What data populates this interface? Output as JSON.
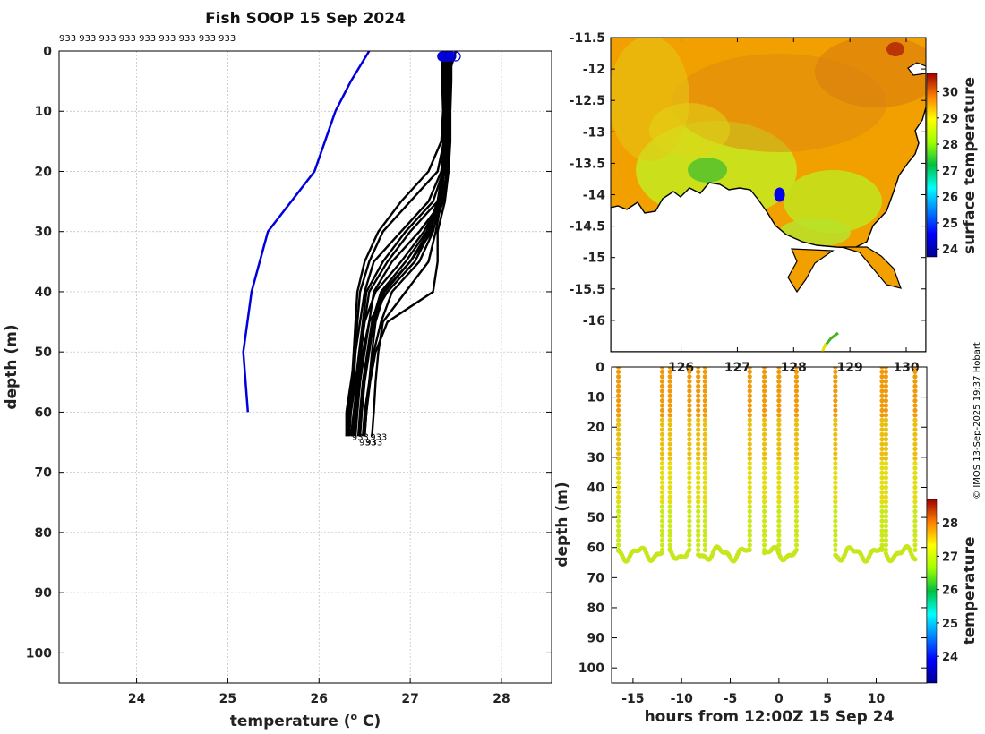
{
  "chart_data": [
    {
      "type": "line",
      "title": "Fish SOOP 15 Sep 2024",
      "xlabel": "temperature (o C)",
      "ylabel": "depth (m)",
      "xlim": [
        23.15,
        28.55
      ],
      "ylim": [
        105,
        0
      ],
      "xticks": [
        "24",
        "25",
        "26",
        "27",
        "28"
      ],
      "yticks": [
        "0",
        "10",
        "20",
        "30",
        "40",
        "50",
        "60",
        "70",
        "80",
        "90",
        "100"
      ],
      "top_labels": [
        "933",
        "933",
        "933",
        "933",
        "933",
        "933",
        "933",
        "933",
        "933"
      ],
      "end_label": "933",
      "climatology": {
        "name": "climatology",
        "color": "#0000dd",
        "temp": [
          26.55,
          26.35,
          26.18,
          25.95,
          25.44,
          25.26,
          25.17,
          25.22
        ],
        "depth": [
          0,
          5,
          10,
          20,
          30,
          40,
          50,
          60
        ]
      },
      "profiles_depth": [
        0,
        5,
        10,
        15,
        20,
        25,
        30,
        35,
        40,
        45,
        50,
        55,
        60,
        64
      ],
      "profiles_temp": [
        [
          27.36,
          27.38,
          27.38,
          27.37,
          27.34,
          27.2,
          26.9,
          26.6,
          26.5,
          26.45,
          26.4,
          26.35,
          26.3,
          26.3
        ],
        [
          27.4,
          27.41,
          27.4,
          27.39,
          27.38,
          27.3,
          27.0,
          26.75,
          26.55,
          26.5,
          26.45,
          26.42,
          26.38,
          26.35
        ],
        [
          27.38,
          27.39,
          27.39,
          27.38,
          27.36,
          27.25,
          26.95,
          26.7,
          26.52,
          26.48,
          26.44,
          26.4,
          26.35,
          26.33
        ],
        [
          27.42,
          27.42,
          27.41,
          27.4,
          27.4,
          27.35,
          27.1,
          26.8,
          26.6,
          26.55,
          26.5,
          26.45,
          26.42,
          26.4
        ],
        [
          27.37,
          27.37,
          27.37,
          27.36,
          27.35,
          27.3,
          27.2,
          27.0,
          26.7,
          26.6,
          26.55,
          26.5,
          26.47,
          26.45
        ],
        [
          27.45,
          27.45,
          27.44,
          27.44,
          27.42,
          27.38,
          27.3,
          27.3,
          27.25,
          26.75,
          26.62,
          26.56,
          26.52,
          26.5
        ],
        [
          27.36,
          27.37,
          27.37,
          27.37,
          27.3,
          27.0,
          26.7,
          26.55,
          26.45,
          26.42,
          26.4,
          26.38,
          26.34,
          26.32
        ],
        [
          27.39,
          27.39,
          27.38,
          27.38,
          27.37,
          27.32,
          27.15,
          26.9,
          26.62,
          26.5,
          26.46,
          26.43,
          26.4,
          26.36
        ],
        [
          27.5,
          27.4,
          27.38,
          27.37,
          27.36,
          27.33,
          27.25,
          27.1,
          26.8,
          26.68,
          26.6,
          26.55,
          26.52,
          26.5
        ],
        [
          27.35,
          27.35,
          27.36,
          27.34,
          27.2,
          26.9,
          26.65,
          26.5,
          26.42,
          26.4,
          26.38,
          26.36,
          26.32,
          26.3
        ],
        [
          27.41,
          27.41,
          27.41,
          27.41,
          27.38,
          27.3,
          27.18,
          26.95,
          26.68,
          26.58,
          26.53,
          26.48,
          26.45,
          26.43
        ],
        [
          27.38,
          27.38,
          27.38,
          27.38,
          27.37,
          27.34,
          27.28,
          27.2,
          26.95,
          26.7,
          26.65,
          26.62,
          26.6,
          26.58
        ],
        [
          27.37,
          27.38,
          27.38,
          27.37,
          27.36,
          27.32,
          27.22,
          27.05,
          26.75,
          26.55,
          26.48,
          26.44,
          26.41,
          26.38
        ],
        [
          27.43,
          27.43,
          27.42,
          27.42,
          27.4,
          27.36,
          27.24,
          27.0,
          26.72,
          26.62,
          26.58,
          26.55,
          26.5,
          26.48
        ]
      ]
    },
    {
      "type": "heatmap",
      "kind": "map",
      "ylim": [
        -16.5,
        -11.5
      ],
      "xlim": [
        124.75,
        130.35
      ],
      "yticks": [
        "-11.5",
        "-12",
        "-12.5",
        "-13",
        "-13.5",
        "-14",
        "-14.5",
        "-15",
        "-15.5",
        "-16"
      ],
      "xticks": [
        "126",
        "127",
        "128",
        "129",
        "130"
      ],
      "colorbar": {
        "label": "surface temperature",
        "range": [
          23.7,
          30.7
        ],
        "ticks": [
          "24",
          "25",
          "26",
          "27",
          "28",
          "29",
          "30"
        ]
      },
      "track_point": {
        "lon": 127.75,
        "lat": -14.0,
        "color": "#0000ee"
      }
    },
    {
      "type": "scatter",
      "xlabel": "hours from 12:00Z 15 Sep 24",
      "ylabel": "depth (m)",
      "xlim": [
        -17.2,
        15.2
      ],
      "ylim": [
        105,
        0
      ],
      "xticks": [
        "-15",
        "-10",
        "-5",
        "0",
        "5",
        "10"
      ],
      "yticks": [
        "0",
        "10",
        "20",
        "30",
        "40",
        "50",
        "60",
        "70",
        "80",
        "90",
        "100"
      ],
      "casts_hours": [
        -16.5,
        -12.0,
        -11.2,
        -9.2,
        -8.3,
        -7.6,
        -3.0,
        -1.5,
        0.0,
        1.8,
        5.8,
        10.6,
        11.0,
        14.0
      ],
      "segments": [
        [
          -16.5,
          -12.0
        ],
        [
          -11.2,
          -9.2
        ],
        [
          -8.3,
          -7.6
        ],
        [
          -7.6,
          -3.0
        ],
        [
          -1.5,
          0.0
        ],
        [
          0.0,
          1.8
        ],
        [
          5.8,
          10.6
        ],
        [
          11.0,
          14.0
        ]
      ],
      "colorbar": {
        "label": "temperature",
        "range": [
          23.2,
          28.7
        ],
        "ticks": [
          "24",
          "25",
          "26",
          "27",
          "28"
        ]
      }
    }
  ],
  "credit": "© IMOS 13-Sep-2025 19:37 Hobart"
}
